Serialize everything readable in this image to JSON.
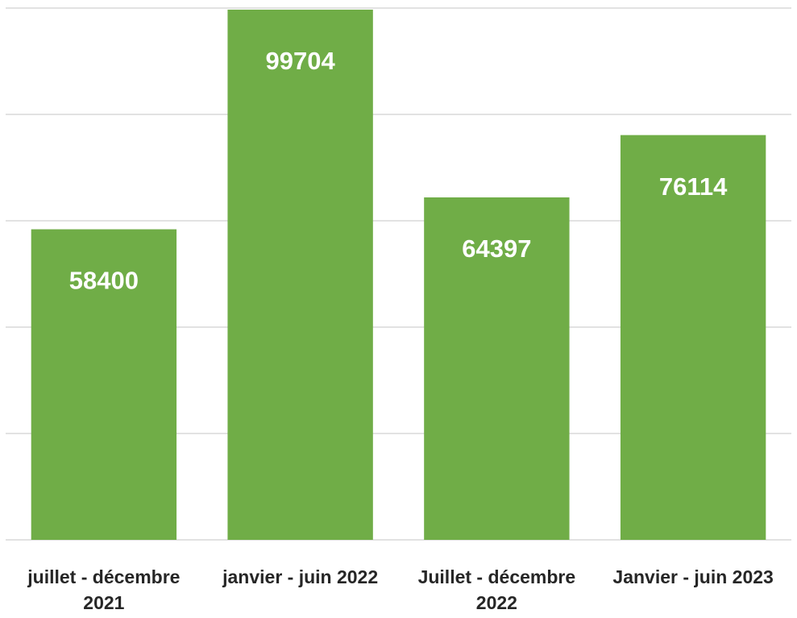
{
  "chart_data": {
    "type": "bar",
    "categories": [
      "juillet - décembre 2021",
      "janvier - juin 2022",
      "Juillet - décembre 2022",
      "Janvier - juin 2023"
    ],
    "values": [
      58400,
      99704,
      64397,
      76114
    ],
    "color": "#70ad47",
    "ylim": [
      0,
      100000
    ],
    "yticks": [
      0,
      20000,
      40000,
      60000,
      80000,
      100000
    ],
    "grid": true
  }
}
